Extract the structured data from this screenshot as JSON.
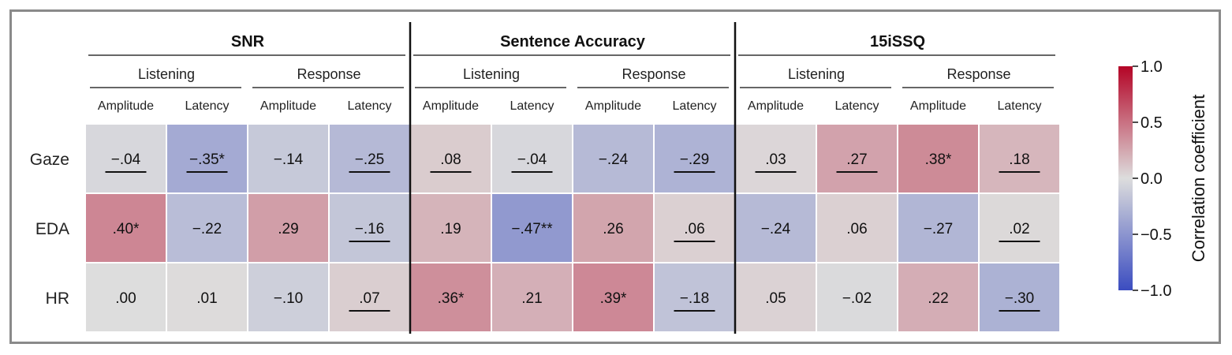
{
  "chart_data": {
    "type": "heatmap",
    "groups": [
      "SNR",
      "Sentence Accuracy",
      "15iSSQ"
    ],
    "phases": [
      "Listening",
      "Response"
    ],
    "measures": [
      "Amplitude",
      "Latency"
    ],
    "rows": [
      "Gaze",
      "EDA",
      "HR"
    ],
    "values": [
      [
        -0.04,
        -0.35,
        -0.14,
        -0.25,
        0.08,
        -0.04,
        -0.24,
        -0.29,
        0.03,
        0.27,
        0.38,
        0.18
      ],
      [
        0.4,
        -0.22,
        0.29,
        -0.16,
        0.19,
        -0.47,
        0.26,
        0.06,
        -0.24,
        0.06,
        -0.27,
        0.02
      ],
      [
        0.0,
        0.01,
        -0.1,
        0.07,
        0.36,
        0.21,
        0.39,
        -0.18,
        0.05,
        -0.02,
        0.22,
        -0.3
      ]
    ],
    "labels": [
      [
        "−.04",
        "−.35*",
        "−.14",
        "−.25",
        ".08",
        "−.04",
        "−.24",
        "−.29",
        ".03",
        ".27",
        ".38*",
        ".18"
      ],
      [
        ".40*",
        "−.22",
        ".29",
        "−.16",
        ".19",
        "−.47**",
        ".26",
        ".06",
        "−.24",
        ".06",
        "−.27",
        ".02"
      ],
      [
        ".00",
        ".01",
        "−.10",
        ".07",
        ".36*",
        ".21",
        ".39*",
        "−.18",
        ".05",
        "−.02",
        ".22",
        "−.30"
      ]
    ],
    "underlined": [
      [
        true,
        true,
        false,
        true,
        true,
        true,
        false,
        true,
        true,
        true,
        false,
        true
      ],
      [
        false,
        false,
        false,
        true,
        false,
        false,
        false,
        true,
        false,
        false,
        false,
        true
      ],
      [
        false,
        false,
        false,
        true,
        false,
        false,
        false,
        true,
        false,
        false,
        false,
        true
      ]
    ],
    "colorbar": {
      "label": "Correlation coefficient",
      "range": [
        -1.0,
        1.0
      ],
      "ticks": [
        1.0,
        0.5,
        0.0,
        -0.5,
        -1.0
      ],
      "tick_labels": [
        "1.0",
        "0.5",
        "0.0",
        "−0.5",
        "−1.0"
      ],
      "colormap": "coolwarm",
      "low_color": "#3b4cc0",
      "mid_color": "#dddddd",
      "high_color": "#b40426"
    }
  }
}
